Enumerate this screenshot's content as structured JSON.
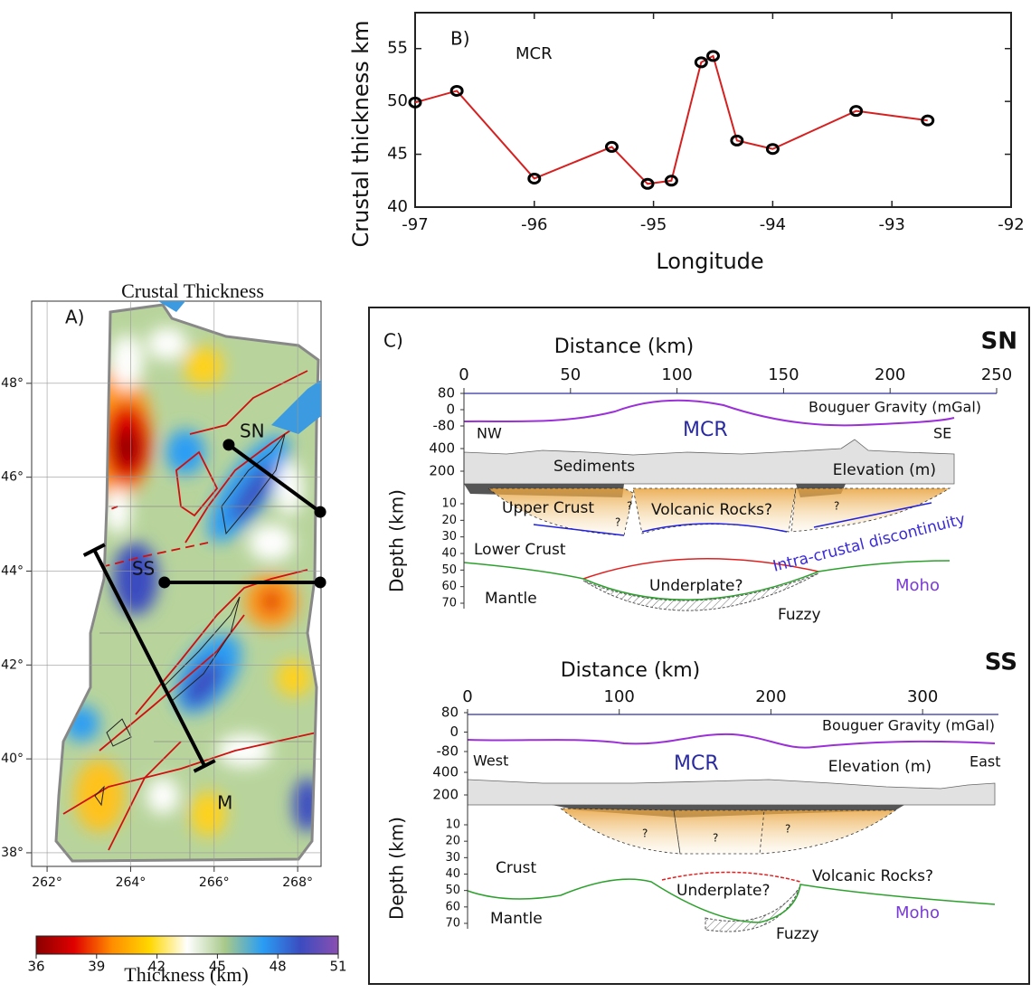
{
  "chart_data": {
    "type": "line",
    "label": "B)",
    "annotation": "MCR",
    "xlabel": "Longitude",
    "ylabel": "Crustal thickness km",
    "x": [
      -97,
      -96.65,
      -96,
      -95.35,
      -95.05,
      -94.85,
      -94.6,
      -94.5,
      -94.3,
      -94,
      -93.3,
      -92.7
    ],
    "values": [
      49.9,
      51,
      42.7,
      45.7,
      42.2,
      42.5,
      53.7,
      54.3,
      46.3,
      45.5,
      49.1,
      48.2
    ],
    "color": "#d62020",
    "marker_color": "#000000",
    "xlim": [
      -97,
      -92
    ],
    "xticks": [
      -97,
      -96,
      -95,
      -94,
      -93,
      -92
    ],
    "ylim": [
      40,
      58.4
    ],
    "yticks": [
      40,
      45,
      50,
      55
    ]
  },
  "map": {
    "title": "Crustal Thickness",
    "label": "A)",
    "lonlim": [
      261.63,
      268.56
    ],
    "latlim": [
      37.71,
      49.75
    ],
    "lonticks": [
      {
        "value": 262,
        "label": "262°"
      },
      {
        "value": 264,
        "label": "264°"
      },
      {
        "value": 266,
        "label": "266°"
      },
      {
        "value": 268,
        "label": "268°"
      }
    ],
    "latticks": [
      {
        "value": 38,
        "label": "38°"
      },
      {
        "value": 40,
        "label": "40°"
      },
      {
        "value": 42,
        "label": "42°"
      },
      {
        "value": 44,
        "label": "44°"
      },
      {
        "value": 46,
        "label": "46°"
      },
      {
        "value": 48,
        "label": "48°"
      }
    ],
    "profiles": [
      {
        "name": "SN",
        "start": [
          266.35,
          46.69
        ],
        "end": [
          268.54,
          45.26
        ]
      },
      {
        "name": "SS",
        "start": [
          264.81,
          43.76
        ],
        "end": [
          268.54,
          43.76
        ]
      },
      {
        "name": "M",
        "start": [
          263.13,
          44.45
        ],
        "end": [
          265.77,
          39.85
        ]
      }
    ],
    "colorbar": {
      "label": "Thickness (km)",
      "lim": [
        36,
        51
      ],
      "ticks": [
        36,
        39,
        42,
        45,
        48,
        51
      ],
      "colors": [
        "#8b0000",
        "#e00000",
        "#ff8c00",
        "#ffd700",
        "#ffffff",
        "#a8c98a",
        "#2a9df4",
        "#3b4cc0",
        "#8a4fb0"
      ]
    }
  },
  "sections": [
    {
      "panel": "C)",
      "name": "SN",
      "xlabel": "Distance (km)",
      "xlim": [
        0,
        250
      ],
      "xticks": [
        0,
        50,
        100,
        150,
        200,
        250
      ],
      "gravity_label": "Bouguer Gravity (mGal)",
      "gravity_lim": [
        -80,
        80
      ],
      "gravity_ticks": [
        80,
        0,
        -80
      ],
      "elevation_label": "Elevation (m)",
      "elevation_lim": [
        200,
        400
      ],
      "elevation_ticks": [
        400,
        200
      ],
      "depth_label": "Depth (km)",
      "depth_lim": [
        10,
        70
      ],
      "depth_ticks": [
        10,
        20,
        30,
        40,
        50,
        60,
        70
      ],
      "left_end": "NW",
      "right_end": "SE",
      "rift": "MCR",
      "labels": [
        "Sediments",
        "Upper Crust",
        "Volcanic Rocks?",
        "Intra-crustal discontinuity",
        "Lower Crust",
        "Underplate?",
        "Mantle",
        "Fuzzy",
        "Moho",
        "?",
        "?",
        "?"
      ]
    },
    {
      "name": "SS",
      "xlabel": "Distance (km)",
      "xlim": [
        0,
        350
      ],
      "xticks": [
        0,
        100,
        200,
        300
      ],
      "gravity_label": "Bouguer Gravity (mGal)",
      "gravity_lim": [
        -80,
        80
      ],
      "gravity_ticks": [
        80,
        0,
        -80
      ],
      "elevation_label": "Elevation (m)",
      "elevation_lim": [
        200,
        400
      ],
      "elevation_ticks": [
        400,
        200
      ],
      "depth_label": "Depth (km)",
      "depth_lim": [
        10,
        70
      ],
      "depth_ticks": [
        10,
        20,
        30,
        40,
        50,
        60,
        70
      ],
      "left_end": "West",
      "right_end": "East",
      "rift": "MCR",
      "labels": [
        "Crust",
        "Volcanic Rocks?",
        "Underplate?",
        "Mantle",
        "Fuzzy",
        "Moho",
        "?",
        "?",
        "?"
      ]
    }
  ]
}
